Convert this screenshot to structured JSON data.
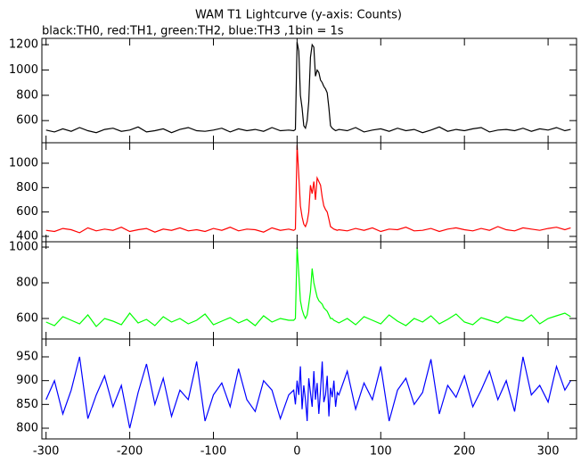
{
  "chart_data": [
    {
      "type": "line",
      "title": "WAM T1 Lightcurve (y-axis: Counts)",
      "subtitle": "black:TH0, red:TH1, green:TH2, blue:TH3 ,1bin = 1s",
      "x": [
        -300,
        -290,
        -280,
        -270,
        -260,
        -250,
        -240,
        -230,
        -220,
        -210,
        -200,
        -190,
        -180,
        -170,
        -160,
        -150,
        -140,
        -130,
        -120,
        -110,
        -100,
        -90,
        -80,
        -70,
        -60,
        -50,
        -40,
        -30,
        -20,
        -10,
        -4,
        -2,
        0,
        2,
        4,
        6,
        8,
        10,
        12,
        14,
        16,
        18,
        20,
        22,
        24,
        26,
        28,
        30,
        32,
        34,
        36,
        38,
        40,
        42,
        44,
        46,
        48,
        50,
        60,
        70,
        80,
        90,
        100,
        110,
        120,
        130,
        140,
        150,
        160,
        170,
        180,
        190,
        200,
        210,
        220,
        230,
        240,
        250,
        260,
        270,
        280,
        290,
        300,
        310,
        320,
        327
      ],
      "color": "#000000",
      "values": [
        525,
        510,
        535,
        515,
        545,
        520,
        505,
        530,
        540,
        515,
        525,
        550,
        510,
        520,
        535,
        505,
        530,
        545,
        520,
        515,
        525,
        540,
        510,
        535,
        520,
        530,
        515,
        545,
        520,
        525,
        520,
        530,
        1220,
        1150,
        800,
        700,
        560,
        540,
        600,
        750,
        1100,
        1200,
        1180,
        950,
        1000,
        980,
        920,
        900,
        870,
        850,
        820,
        700,
        560,
        540,
        530,
        520,
        525,
        530,
        520,
        545,
        510,
        525,
        535,
        515,
        540,
        520,
        530,
        505,
        525,
        550,
        515,
        530,
        520,
        535,
        545,
        510,
        525,
        530,
        520,
        540,
        515,
        535,
        525,
        545,
        520,
        530
      ],
      "xlim": [
        -305,
        334
      ],
      "ylim": [
        425,
        1250
      ],
      "yticks": [
        600,
        800,
        1000,
        1200
      ]
    },
    {
      "type": "line",
      "x": [
        -300,
        -290,
        -280,
        -270,
        -260,
        -250,
        -240,
        -230,
        -220,
        -210,
        -200,
        -190,
        -180,
        -170,
        -160,
        -150,
        -140,
        -130,
        -120,
        -110,
        -100,
        -90,
        -80,
        -70,
        -60,
        -50,
        -40,
        -30,
        -20,
        -10,
        -4,
        -2,
        0,
        2,
        4,
        6,
        8,
        10,
        12,
        14,
        16,
        18,
        20,
        22,
        24,
        26,
        28,
        30,
        32,
        34,
        36,
        38,
        40,
        42,
        44,
        46,
        48,
        50,
        60,
        70,
        80,
        90,
        100,
        110,
        120,
        130,
        140,
        150,
        160,
        170,
        180,
        190,
        200,
        210,
        220,
        230,
        240,
        250,
        260,
        270,
        280,
        290,
        300,
        310,
        320,
        327
      ],
      "color": "#ff0000",
      "values": [
        450,
        440,
        465,
        455,
        430,
        470,
        445,
        460,
        450,
        475,
        440,
        455,
        465,
        435,
        460,
        450,
        470,
        445,
        455,
        440,
        465,
        450,
        475,
        445,
        460,
        455,
        435,
        470,
        450,
        460,
        450,
        460,
        1150,
        900,
        650,
        560,
        500,
        480,
        520,
        600,
        820,
        750,
        850,
        700,
        880,
        850,
        820,
        720,
        650,
        620,
        600,
        540,
        480,
        470,
        460,
        455,
        450,
        455,
        445,
        465,
        450,
        470,
        440,
        460,
        455,
        475,
        445,
        450,
        465,
        440,
        460,
        470,
        455,
        445,
        465,
        450,
        480,
        455,
        445,
        470,
        460,
        450,
        465,
        475,
        455,
        470
      ],
      "xlim": [
        -305,
        334
      ],
      "ylim": [
        356,
        1168
      ],
      "yticks": [
        400,
        600,
        800,
        1000
      ]
    },
    {
      "type": "line",
      "x": [
        -300,
        -290,
        -280,
        -270,
        -260,
        -250,
        -240,
        -230,
        -220,
        -210,
        -200,
        -190,
        -180,
        -170,
        -160,
        -150,
        -140,
        -130,
        -120,
        -110,
        -100,
        -90,
        -80,
        -70,
        -60,
        -50,
        -40,
        -30,
        -20,
        -10,
        -4,
        -2,
        0,
        2,
        4,
        6,
        8,
        10,
        12,
        14,
        16,
        18,
        20,
        22,
        24,
        26,
        28,
        30,
        32,
        34,
        36,
        38,
        40,
        42,
        44,
        46,
        48,
        50,
        60,
        70,
        80,
        90,
        100,
        110,
        120,
        130,
        140,
        150,
        160,
        170,
        180,
        190,
        200,
        210,
        220,
        230,
        240,
        250,
        260,
        270,
        280,
        290,
        300,
        310,
        320,
        327
      ],
      "color": "#00ff00",
      "values": [
        580,
        560,
        610,
        590,
        570,
        620,
        555,
        600,
        585,
        565,
        630,
        575,
        595,
        560,
        610,
        580,
        600,
        570,
        590,
        625,
        565,
        585,
        605,
        575,
        595,
        560,
        615,
        580,
        600,
        590,
        590,
        600,
        1000,
        850,
        700,
        650,
        620,
        600,
        620,
        680,
        750,
        880,
        800,
        760,
        720,
        700,
        690,
        680,
        660,
        650,
        640,
        620,
        600,
        600,
        590,
        585,
        580,
        575,
        600,
        565,
        610,
        590,
        570,
        620,
        585,
        560,
        600,
        580,
        615,
        570,
        595,
        625,
        580,
        565,
        605,
        590,
        575,
        610,
        595,
        585,
        620,
        570,
        600,
        615,
        630,
        610
      ],
      "xlim": [
        -305,
        334
      ],
      "ylim": [
        485,
        1030
      ],
      "yticks": [
        600,
        800,
        1000
      ]
    },
    {
      "type": "line",
      "x": [
        -300,
        -290,
        -280,
        -270,
        -260,
        -250,
        -240,
        -230,
        -220,
        -210,
        -200,
        -190,
        -180,
        -170,
        -160,
        -150,
        -140,
        -130,
        -120,
        -110,
        -100,
        -90,
        -80,
        -70,
        -60,
        -50,
        -40,
        -30,
        -20,
        -10,
        -4,
        -2,
        0,
        2,
        4,
        6,
        8,
        10,
        12,
        14,
        16,
        18,
        20,
        22,
        24,
        26,
        28,
        30,
        32,
        34,
        36,
        38,
        40,
        42,
        44,
        46,
        48,
        50,
        60,
        70,
        80,
        90,
        100,
        110,
        120,
        130,
        140,
        150,
        160,
        170,
        180,
        190,
        200,
        210,
        220,
        230,
        240,
        250,
        260,
        270,
        280,
        290,
        300,
        310,
        320,
        327
      ],
      "color": "#0000ff",
      "values": [
        860,
        900,
        830,
        880,
        950,
        820,
        870,
        910,
        845,
        890,
        800,
        875,
        935,
        850,
        905,
        825,
        880,
        860,
        940,
        815,
        870,
        895,
        845,
        925,
        860,
        835,
        900,
        880,
        820,
        870,
        880,
        850,
        900,
        870,
        930,
        840,
        890,
        860,
        815,
        905,
        875,
        845,
        920,
        860,
        895,
        830,
        880,
        940,
        855,
        870,
        910,
        825,
        885,
        865,
        900,
        845,
        875,
        870,
        920,
        840,
        895,
        860,
        930,
        815,
        880,
        905,
        850,
        875,
        945,
        830,
        890,
        865,
        910,
        845,
        880,
        920,
        860,
        900,
        835,
        950,
        870,
        890,
        855,
        930,
        880,
        900
      ],
      "xlim": [
        -305,
        334
      ],
      "ylim": [
        777.5,
        987.5
      ],
      "yticks": [
        800,
        850,
        900,
        950
      ],
      "xticks": [
        -300,
        -200,
        -100,
        0,
        100,
        200,
        300
      ]
    }
  ]
}
